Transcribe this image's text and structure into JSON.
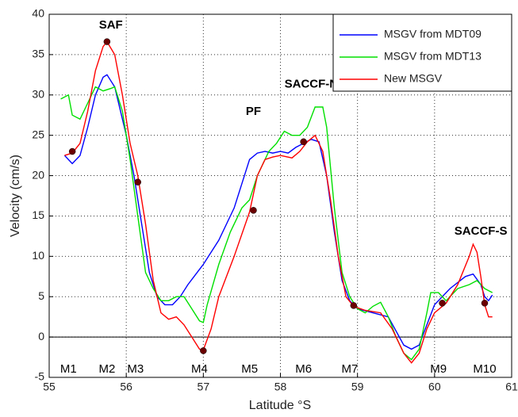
{
  "chart_data": {
    "type": "line",
    "xlabel": "Latitude °S",
    "ylabel": "Velocity (cm/s)",
    "xlim": [
      55,
      61
    ],
    "xticks": [
      55,
      56,
      57,
      58,
      59,
      60,
      61
    ],
    "ylim": [
      -5,
      40
    ],
    "yticks": [
      -5,
      0,
      5,
      10,
      15,
      20,
      25,
      30,
      35,
      40
    ],
    "grid": true,
    "legend": "upper right",
    "zero_line": 0,
    "series": [
      {
        "name": "MSGV from MDT09",
        "color": "#0000ff",
        "x": [
          55.2,
          55.3,
          55.4,
          55.5,
          55.6,
          55.7,
          55.75,
          55.85,
          56.0,
          56.1,
          56.2,
          56.3,
          56.4,
          56.5,
          56.6,
          56.7,
          56.8,
          57.0,
          57.2,
          57.4,
          57.5,
          57.6,
          57.7,
          57.8,
          57.9,
          58.0,
          58.1,
          58.2,
          58.3,
          58.4,
          58.5,
          58.6,
          58.7,
          58.8,
          58.9,
          59.0,
          59.2,
          59.4,
          59.6,
          59.7,
          59.8,
          59.9,
          60.0,
          60.2,
          60.4,
          60.5,
          60.6,
          60.65,
          60.7,
          60.75
        ],
        "values": [
          22.5,
          21.5,
          22.5,
          26,
          30,
          32.2,
          32.5,
          31,
          25,
          20,
          14,
          8,
          5,
          4,
          4,
          5,
          6.5,
          9,
          12,
          16,
          19,
          22,
          22.8,
          23,
          22.8,
          23,
          22.8,
          23.5,
          24,
          24.5,
          24.2,
          20,
          13,
          7,
          4.5,
          3.5,
          3,
          2.5,
          -1,
          -1.5,
          -1,
          1.5,
          4,
          6,
          7.5,
          7.8,
          6.5,
          5,
          4.5,
          5.2
        ]
      },
      {
        "name": "MSGV from MDT13",
        "color": "#00e000",
        "x": [
          55.15,
          55.25,
          55.3,
          55.4,
          55.5,
          55.6,
          55.7,
          55.8,
          55.85,
          55.95,
          56.05,
          56.15,
          56.25,
          56.35,
          56.45,
          56.55,
          56.65,
          56.75,
          56.85,
          56.95,
          57.0,
          57.05,
          57.2,
          57.35,
          57.5,
          57.6,
          57.7,
          57.85,
          57.95,
          58.05,
          58.15,
          58.25,
          58.35,
          58.45,
          58.55,
          58.6,
          58.7,
          58.8,
          58.9,
          59.0,
          59.1,
          59.2,
          59.3,
          59.4,
          59.5,
          59.6,
          59.7,
          59.8,
          59.9,
          59.95,
          60.05,
          60.15,
          60.3,
          60.45,
          60.55,
          60.65,
          60.75
        ],
        "values": [
          29.5,
          30,
          27.5,
          27,
          29,
          31,
          30.5,
          30.8,
          31,
          28,
          22,
          15,
          8,
          6,
          4.5,
          4.5,
          5,
          5,
          3.5,
          2,
          1.8,
          4,
          9,
          13,
          16,
          17,
          20,
          23,
          24,
          25.5,
          25,
          25,
          26,
          28.5,
          28.5,
          26,
          16,
          8,
          5,
          3.5,
          3,
          3.8,
          4.3,
          2.5,
          0,
          -2,
          -2.8,
          -1.5,
          3,
          5.5,
          5.5,
          4.5,
          6,
          6.5,
          7,
          6,
          5.5
        ]
      },
      {
        "name": "New MSGV",
        "color": "#ff0000",
        "x": [
          55.2,
          55.3,
          55.4,
          55.5,
          55.6,
          55.7,
          55.75,
          55.85,
          55.95,
          56.05,
          56.15,
          56.25,
          56.35,
          56.45,
          56.55,
          56.65,
          56.75,
          56.85,
          56.95,
          57.0,
          57.1,
          57.2,
          57.4,
          57.6,
          57.7,
          57.8,
          57.9,
          58.0,
          58.15,
          58.25,
          58.35,
          58.45,
          58.55,
          58.65,
          58.75,
          58.85,
          58.95,
          59.1,
          59.3,
          59.45,
          59.6,
          59.7,
          59.8,
          59.9,
          60.0,
          60.15,
          60.3,
          60.45,
          60.5,
          60.55,
          60.6,
          60.65,
          60.7,
          60.75
        ],
        "values": [
          22.5,
          22.8,
          24,
          28,
          33,
          36,
          36.6,
          35,
          30,
          24,
          20,
          14,
          7,
          3,
          2.2,
          2.5,
          1.5,
          0,
          -1.5,
          -1.6,
          1,
          5,
          10,
          15.5,
          20,
          22,
          22.3,
          22.5,
          22.2,
          23,
          24.2,
          25,
          23,
          17,
          10,
          5,
          3.8,
          3.3,
          3,
          1,
          -2,
          -3.2,
          -2,
          1,
          3,
          4.2,
          6.5,
          10,
          11.5,
          10.5,
          7.5,
          4,
          2.5,
          2.5
        ]
      }
    ],
    "markers": {
      "color": "#6a0000",
      "x": [
        55.3,
        55.75,
        56.15,
        57.0,
        57.65,
        58.3,
        58.95,
        60.1,
        60.65
      ],
      "values": [
        23,
        36.6,
        19.2,
        -1.7,
        15.7,
        24.2,
        3.9,
        4.2,
        4.2
      ]
    },
    "annotations": [
      {
        "text": "SAF",
        "x": 55.8,
        "y": 38.6
      },
      {
        "text": "SACCF-N",
        "x": 58.4,
        "y": 31.3
      },
      {
        "text": "PF",
        "x": 57.65,
        "y": 27.9
      },
      {
        "text": "SACCF-S",
        "x": 60.6,
        "y": 13.1
      }
    ],
    "moorings": [
      {
        "text": "M1",
        "x": 55.25,
        "y": -4
      },
      {
        "text": "M2",
        "x": 55.75,
        "y": -4
      },
      {
        "text": "M3",
        "x": 56.12,
        "y": -4
      },
      {
        "text": "M4",
        "x": 56.95,
        "y": -4
      },
      {
        "text": "M5",
        "x": 57.6,
        "y": -4
      },
      {
        "text": "M6",
        "x": 58.3,
        "y": -4
      },
      {
        "text": "M7",
        "x": 58.9,
        "y": -4
      },
      {
        "text": "M9",
        "x": 60.05,
        "y": -4
      },
      {
        "text": "M10",
        "x": 60.65,
        "y": -4
      }
    ]
  }
}
